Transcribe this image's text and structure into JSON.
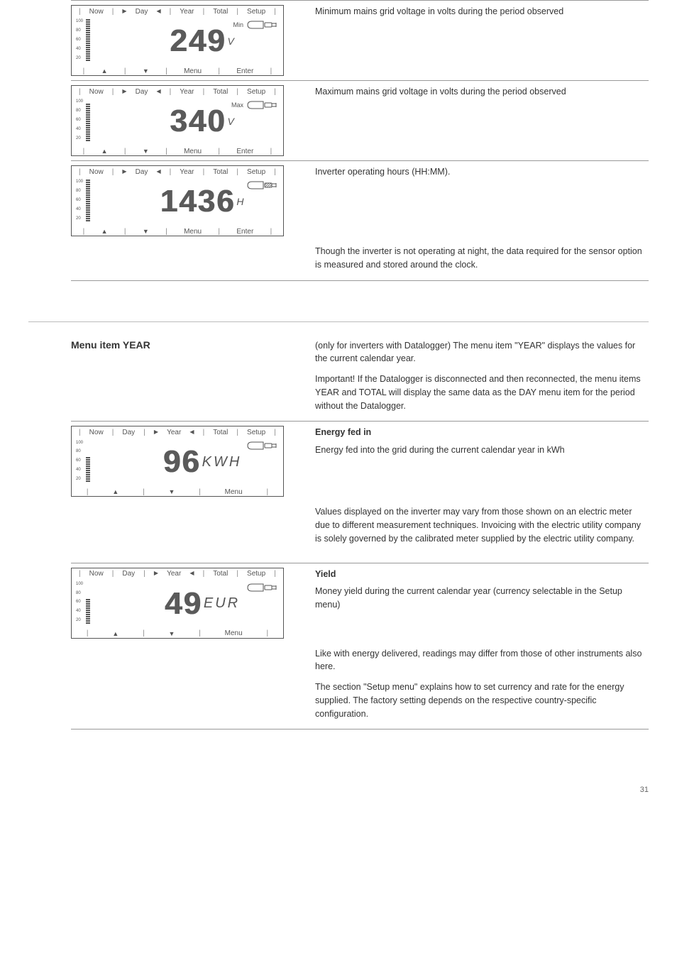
{
  "tabs": {
    "now": "Now",
    "day": "Day",
    "year": "Year",
    "total": "Total",
    "setup": "Setup"
  },
  "footer": {
    "menu": "Menu",
    "enter": "Enter"
  },
  "gauge_labels": [
    "100",
    "80",
    "60",
    "40",
    "20"
  ],
  "screens": {
    "minV": {
      "value": "249",
      "unit": "V",
      "minmax": "Min",
      "bars": 20,
      "show_enter": true
    },
    "maxV": {
      "value": "340",
      "unit": "V",
      "minmax": "Max",
      "bars": 18,
      "show_enter": true
    },
    "hours": {
      "value": "1436",
      "unit": "H",
      "minmax": "",
      "bars": 20,
      "show_enter": true,
      "hatched_icon": true
    },
    "kwh": {
      "value": "96",
      "unit": "KWH",
      "minmax": "",
      "bars": 12,
      "show_enter": false
    },
    "eur": {
      "value": "49",
      "unit": "EUR",
      "minmax": "",
      "bars": 12,
      "show_enter": false
    }
  },
  "text": {
    "minV": "Minimum mains grid voltage in volts during the period observed",
    "maxV": "Maximum mains grid voltage in volts during the period observed",
    "hours": "Inverter operating hours (HH:MM).",
    "hours_note": "Though the inverter is not operating at night, the data required for the sensor option is measured and stored around the clock.",
    "year_title": "Menu item YEAR",
    "year_desc": "(only for inverters with Datalogger) The menu item \"YEAR\" displays the values for the current calendar year.",
    "year_note": "Important! If the Datalogger is disconnected and then reconnected, the menu items YEAR and TOTAL will display the same data as the DAY menu item for the period without the Datalogger.",
    "kwh_label": "Energy fed in",
    "kwh_body": "Energy fed into the grid during the current calendar year in kWh",
    "kwh_note": "Values displayed on the inverter may vary from those shown on an electric meter due to different measurement techniques. Invoicing with the electric utility company is solely governed by the calibrated meter supplied by the electric utility company.",
    "eur_label": "Yield",
    "eur_body": "Money yield during the current calendar year (currency selectable in the Setup menu)",
    "eur_note": "Like with energy delivered, readings may differ from those of other instruments also here.",
    "eur_note2": "The section \"Setup menu\" explains how to set currency and rate for the energy supplied. The factory setting depends on the respective country-specific configuration."
  },
  "page": "31"
}
